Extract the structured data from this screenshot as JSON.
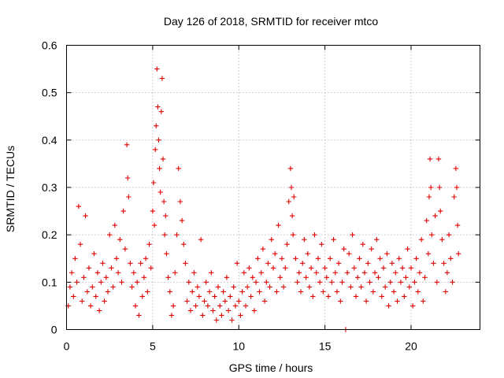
{
  "chart_data": {
    "type": "scatter",
    "title": "Day 126 of 2018, SRMTID for receiver mtco",
    "xlabel": "GPS time / hours",
    "ylabel": "SRMTID / TECUs",
    "xlim": [
      0,
      24
    ],
    "ylim": [
      0,
      0.6
    ],
    "xticks": [
      "0",
      "5",
      "10",
      "15",
      "20"
    ],
    "yticks": [
      "0",
      "0.1",
      "0.2",
      "0.3",
      "0.4",
      "0.5",
      "0.6"
    ],
    "grid": true,
    "marker": "plus",
    "color": "#e00000",
    "series": [
      {
        "name": "SRMTID",
        "points": [
          [
            0.1,
            0.05
          ],
          [
            0.2,
            0.09
          ],
          [
            0.3,
            0.12
          ],
          [
            0.4,
            0.07
          ],
          [
            0.5,
            0.15
          ],
          [
            0.6,
            0.1
          ],
          [
            0.7,
            0.26
          ],
          [
            0.8,
            0.18
          ],
          [
            0.9,
            0.06
          ],
          [
            1.0,
            0.11
          ],
          [
            1.1,
            0.24
          ],
          [
            1.2,
            0.08
          ],
          [
            1.3,
            0.13
          ],
          [
            1.4,
            0.05
          ],
          [
            1.5,
            0.09
          ],
          [
            1.6,
            0.16
          ],
          [
            1.7,
            0.07
          ],
          [
            1.8,
            0.12
          ],
          [
            1.9,
            0.04
          ],
          [
            2.0,
            0.1
          ],
          [
            2.1,
            0.14
          ],
          [
            2.2,
            0.06
          ],
          [
            2.3,
            0.11
          ],
          [
            2.4,
            0.08
          ],
          [
            2.5,
            0.2
          ],
          [
            2.6,
            0.13
          ],
          [
            2.7,
            0.09
          ],
          [
            2.8,
            0.22
          ],
          [
            2.9,
            0.15
          ],
          [
            3.0,
            0.12
          ],
          [
            3.1,
            0.19
          ],
          [
            3.2,
            0.1
          ],
          [
            3.3,
            0.25
          ],
          [
            3.4,
            0.17
          ],
          [
            3.5,
            0.39
          ],
          [
            3.55,
            0.32
          ],
          [
            3.6,
            0.28
          ],
          [
            3.7,
            0.14
          ],
          [
            3.8,
            0.09
          ],
          [
            3.9,
            0.12
          ],
          [
            4.0,
            0.05
          ],
          [
            4.1,
            0.1
          ],
          [
            4.2,
            0.03
          ],
          [
            4.3,
            0.14
          ],
          [
            4.4,
            0.07
          ],
          [
            4.5,
            0.11
          ],
          [
            4.6,
            0.15
          ],
          [
            4.7,
            0.08
          ],
          [
            4.8,
            0.18
          ],
          [
            4.9,
            0.13
          ],
          [
            5.0,
            0.25
          ],
          [
            5.05,
            0.31
          ],
          [
            5.1,
            0.22
          ],
          [
            5.15,
            0.38
          ],
          [
            5.2,
            0.43
          ],
          [
            5.25,
            0.55
          ],
          [
            5.3,
            0.47
          ],
          [
            5.35,
            0.4
          ],
          [
            5.4,
            0.34
          ],
          [
            5.45,
            0.29
          ],
          [
            5.5,
            0.46
          ],
          [
            5.55,
            0.53
          ],
          [
            5.6,
            0.36
          ],
          [
            5.65,
            0.27
          ],
          [
            5.7,
            0.2
          ],
          [
            5.75,
            0.24
          ],
          [
            5.8,
            0.16
          ],
          [
            5.9,
            0.11
          ],
          [
            6.0,
            0.08
          ],
          [
            6.1,
            0.03
          ],
          [
            6.2,
            0.05
          ],
          [
            6.3,
            0.12
          ],
          [
            6.4,
            0.2
          ],
          [
            6.5,
            0.34
          ],
          [
            6.6,
            0.27
          ],
          [
            6.7,
            0.23
          ],
          [
            6.8,
            0.18
          ],
          [
            6.9,
            0.14
          ],
          [
            7.0,
            0.06
          ],
          [
            7.1,
            0.1
          ],
          [
            7.2,
            0.04
          ],
          [
            7.3,
            0.08
          ],
          [
            7.4,
            0.12
          ],
          [
            7.5,
            0.05
          ],
          [
            7.6,
            0.09
          ],
          [
            7.7,
            0.07
          ],
          [
            7.8,
            0.19
          ],
          [
            7.9,
            0.03
          ],
          [
            8.0,
            0.06
          ],
          [
            8.1,
            0.1
          ],
          [
            8.2,
            0.05
          ],
          [
            8.3,
            0.08
          ],
          [
            8.4,
            0.12
          ],
          [
            8.5,
            0.04
          ],
          [
            8.6,
            0.07
          ],
          [
            8.7,
            0.02
          ],
          [
            8.8,
            0.09
          ],
          [
            8.9,
            0.05
          ],
          [
            9.0,
            0.03
          ],
          [
            9.1,
            0.08
          ],
          [
            9.2,
            0.06
          ],
          [
            9.3,
            0.11
          ],
          [
            9.4,
            0.04
          ],
          [
            9.5,
            0.07
          ],
          [
            9.6,
            0.02
          ],
          [
            9.7,
            0.09
          ],
          [
            9.8,
            0.05
          ],
          [
            9.9,
            0.14
          ],
          [
            10.0,
            0.06
          ],
          [
            10.1,
            0.03
          ],
          [
            10.2,
            0.08
          ],
          [
            10.3,
            0.12
          ],
          [
            10.4,
            0.05
          ],
          [
            10.5,
            0.09
          ],
          [
            10.6,
            0.13
          ],
          [
            10.7,
            0.07
          ],
          [
            10.8,
            0.11
          ],
          [
            10.9,
            0.04
          ],
          [
            11.0,
            0.1
          ],
          [
            11.1,
            0.15
          ],
          [
            11.2,
            0.08
          ],
          [
            11.3,
            0.12
          ],
          [
            11.4,
            0.17
          ],
          [
            11.5,
            0.06
          ],
          [
            11.6,
            0.1
          ],
          [
            11.7,
            0.14
          ],
          [
            11.8,
            0.09
          ],
          [
            11.9,
            0.19
          ],
          [
            12.0,
            0.13
          ],
          [
            12.1,
            0.16
          ],
          [
            12.2,
            0.08
          ],
          [
            12.3,
            0.22
          ],
          [
            12.4,
            0.11
          ],
          [
            12.5,
            0.15
          ],
          [
            12.6,
            0.09
          ],
          [
            12.7,
            0.13
          ],
          [
            12.8,
            0.18
          ],
          [
            12.9,
            0.27
          ],
          [
            13.0,
            0.34
          ],
          [
            13.05,
            0.3
          ],
          [
            13.1,
            0.24
          ],
          [
            13.15,
            0.2
          ],
          [
            13.2,
            0.28
          ],
          [
            13.3,
            0.15
          ],
          [
            13.4,
            0.1
          ],
          [
            13.5,
            0.12
          ],
          [
            13.6,
            0.08
          ],
          [
            13.7,
            0.14
          ],
          [
            13.8,
            0.19
          ],
          [
            13.9,
            0.11
          ],
          [
            14.0,
            0.16
          ],
          [
            14.1,
            0.09
          ],
          [
            14.2,
            0.13
          ],
          [
            14.3,
            0.07
          ],
          [
            14.4,
            0.2
          ],
          [
            14.5,
            0.12
          ],
          [
            14.6,
            0.15
          ],
          [
            14.7,
            0.1
          ],
          [
            14.8,
            0.18
          ],
          [
            14.9,
            0.08
          ],
          [
            15.0,
            0.13
          ],
          [
            15.1,
            0.11
          ],
          [
            15.2,
            0.07
          ],
          [
            15.3,
            0.15
          ],
          [
            15.4,
            0.1
          ],
          [
            15.5,
            0.19
          ],
          [
            15.6,
            0.12
          ],
          [
            15.7,
            0.08
          ],
          [
            15.8,
            0.14
          ],
          [
            15.9,
            0.06
          ],
          [
            16.0,
            0.1
          ],
          [
            16.1,
            0.17
          ],
          [
            16.2,
            0.0
          ],
          [
            16.3,
            0.12
          ],
          [
            16.4,
            0.16
          ],
          [
            16.5,
            0.09
          ],
          [
            16.6,
            0.2
          ],
          [
            16.7,
            0.13
          ],
          [
            16.8,
            0.07
          ],
          [
            16.9,
            0.11
          ],
          [
            17.0,
            0.15
          ],
          [
            17.1,
            0.09
          ],
          [
            17.2,
            0.18
          ],
          [
            17.3,
            0.12
          ],
          [
            17.4,
            0.06
          ],
          [
            17.5,
            0.14
          ],
          [
            17.6,
            0.1
          ],
          [
            17.7,
            0.17
          ],
          [
            17.8,
            0.08
          ],
          [
            17.9,
            0.12
          ],
          [
            18.0,
            0.19
          ],
          [
            18.1,
            0.11
          ],
          [
            18.2,
            0.15
          ],
          [
            18.3,
            0.07
          ],
          [
            18.4,
            0.13
          ],
          [
            18.5,
            0.09
          ],
          [
            18.6,
            0.16
          ],
          [
            18.7,
            0.05
          ],
          [
            18.8,
            0.1
          ],
          [
            18.9,
            0.14
          ],
          [
            19.0,
            0.08
          ],
          [
            19.1,
            0.12
          ],
          [
            19.2,
            0.06
          ],
          [
            19.3,
            0.15
          ],
          [
            19.4,
            0.1
          ],
          [
            19.5,
            0.13
          ],
          [
            19.6,
            0.07
          ],
          [
            19.7,
            0.11
          ],
          [
            19.8,
            0.17
          ],
          [
            19.9,
            0.09
          ],
          [
            20.0,
            0.13
          ],
          [
            20.1,
            0.05
          ],
          [
            20.2,
            0.1
          ],
          [
            20.3,
            0.15
          ],
          [
            20.4,
            0.08
          ],
          [
            20.5,
            0.12
          ],
          [
            20.6,
            0.19
          ],
          [
            20.7,
            0.06
          ],
          [
            20.8,
            0.11
          ],
          [
            20.9,
            0.23
          ],
          [
            21.0,
            0.16
          ],
          [
            21.05,
            0.28
          ],
          [
            21.1,
            0.36
          ],
          [
            21.15,
            0.3
          ],
          [
            21.2,
            0.2
          ],
          [
            21.3,
            0.14
          ],
          [
            21.4,
            0.24
          ],
          [
            21.5,
            0.1
          ],
          [
            21.6,
            0.36
          ],
          [
            21.65,
            0.3
          ],
          [
            21.7,
            0.25
          ],
          [
            21.8,
            0.19
          ],
          [
            21.9,
            0.14
          ],
          [
            22.0,
            0.08
          ],
          [
            22.1,
            0.12
          ],
          [
            22.2,
            0.2
          ],
          [
            22.3,
            0.15
          ],
          [
            22.4,
            0.1
          ],
          [
            22.5,
            0.28
          ],
          [
            22.6,
            0.34
          ],
          [
            22.65,
            0.3
          ],
          [
            22.7,
            0.22
          ],
          [
            22.75,
            0.16
          ]
        ]
      }
    ]
  }
}
